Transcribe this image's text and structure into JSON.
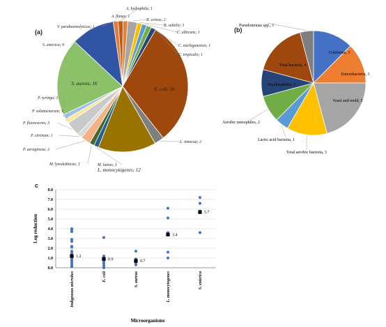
{
  "panels": {
    "a": "(a)",
    "b": "(b)",
    "c": "c"
  },
  "chart_data": [
    {
      "type": "pie",
      "panel": "(a)",
      "slices": [
        {
          "label": "A. hydrophila",
          "value": 1,
          "text": "A. hydrophila; 1",
          "color": "#c55a11"
        },
        {
          "label": "A. flavus",
          "value": 1,
          "text": "A. flavus; 1",
          "color": "#ed7d31"
        },
        {
          "label": "B. cereus",
          "value": 2,
          "text": "B. cereus; 2",
          "color": "#a5a5a5"
        },
        {
          "label": "B. subtilis",
          "value": 1,
          "text": "B. subtilis; 1",
          "color": "#ffc000"
        },
        {
          "label": "C. albicans",
          "value": 1,
          "text": "C. albicans; 1",
          "color": "#5b9bd5"
        },
        {
          "label": "C. michiganensis",
          "value": 1,
          "text": "C. michiganensis; 1",
          "color": "#70ad47"
        },
        {
          "label": "C. tropicalis",
          "value": 1,
          "text": "C. tropicalis; 1",
          "color": "#264478"
        },
        {
          "label": "E. coli",
          "value": 26,
          "text": "E. coli; 26",
          "color": "#9e480e"
        },
        {
          "label": "L. innocua",
          "value": 2,
          "text": "L. innocua; 2",
          "color": "#7f7f7f"
        },
        {
          "label": "L. monocytogenes",
          "value": 12,
          "text": "L. monocytogenes; 12",
          "color": "#997300"
        },
        {
          "label": "M. luteus",
          "value": 1,
          "text": "M. luteus; 1",
          "color": "#255e91"
        },
        {
          "label": "M. lysodeikticus",
          "value": 1,
          "text": "M. lysodeikticus; 1",
          "color": "#43682b"
        },
        {
          "label": "P. aeruginosa",
          "value": 2,
          "text": "P. aeruginosa; 2",
          "color": "#f4b183"
        },
        {
          "label": "P. citrinum",
          "value": 1,
          "text": "P. citrinum; 1",
          "color": "#d9d9d9"
        },
        {
          "label": "P. fluorescens",
          "value": 3,
          "text": "P. fluorescens; 3",
          "color": "#c9c9c9"
        },
        {
          "label": "P. solanacearum",
          "value": 1,
          "text": "P. solanacearum; 1",
          "color": "#ffe699"
        },
        {
          "label": "P. syringa",
          "value": 1,
          "text": "P. syringa; 1",
          "color": "#9dc3e6"
        },
        {
          "label": "S. aureus",
          "value": 16,
          "text": "S. aureus; 16",
          "color": "#8cc16a"
        },
        {
          "label": "S. enterica",
          "value": 9,
          "text": "S. enterica; 9",
          "color": "#2f55a4"
        },
        {
          "label": "V. parahaemolyticus",
          "value": 1,
          "text": "V. parahaemolyticus; 1",
          "color": "#e07b39"
        }
      ]
    },
    {
      "type": "pie",
      "panel": "(b)",
      "slices": [
        {
          "label": "Coliforms",
          "value": 3,
          "text": "Coliforms, 3",
          "color": "#4472c4"
        },
        {
          "label": "Enterobacteria",
          "value": 3,
          "text": "Enterobacteria, 3",
          "color": "#ed7d31"
        },
        {
          "label": "Yeast and mold",
          "value": 5,
          "text": "Yeast and mold, 5",
          "color": "#a5a5a5"
        },
        {
          "label": "Total aerobic bacteria",
          "value": 3,
          "text": "Total aerobic bacteria, 3",
          "color": "#ffc000"
        },
        {
          "label": "Lactic acid bacteria",
          "value": 1,
          "text": "Lactic acid bacteria, 1",
          "color": "#5b9bd5"
        },
        {
          "label": "Aerobic mesophiles",
          "value": 2,
          "text": "Aerobic mesophiles, 2",
          "color": "#70ad47"
        },
        {
          "label": "Psychrophiles",
          "value": 2,
          "text": "Psychrophiles, 2",
          "color": "#264478"
        },
        {
          "label": "Total bacteria",
          "value": 4,
          "text": "Total bacteria, 4",
          "color": "#9e480e"
        },
        {
          "label": "Pseudomonas spp.",
          "value": 1,
          "text": "Pseudomonas spp., 1",
          "color": "#7f7f7f"
        }
      ]
    },
    {
      "type": "scatter",
      "panel": "c",
      "xlabel": "Microorganisms",
      "ylabel": "Log reduction",
      "ylim": [
        0,
        8
      ],
      "yticks": [
        "0.0",
        "1.0",
        "2.0",
        "3.0",
        "4.0",
        "5.0",
        "6.0",
        "7.0",
        "8.0"
      ],
      "grid": "horizontal",
      "categories": [
        "Indigenous microbes",
        "E. coli",
        "S. aureus",
        "L. monocytogenes",
        "S. enterica"
      ],
      "points": [
        [
          4.0,
          3.9,
          3.7,
          2.9,
          2.7,
          2.2,
          2.1,
          1.7,
          1.5,
          1.3,
          1.1,
          1.0,
          0.8,
          0.6,
          0.4,
          0.2,
          0.1
        ],
        [
          3.1,
          1.2,
          1.1,
          1.0,
          0.9,
          0.6,
          0.4,
          0.2,
          0.0
        ],
        [
          1.7,
          0.9,
          0.7,
          0.4,
          0.3
        ],
        [
          6.1,
          5.1,
          3.6,
          3.4,
          1.6,
          1.0
        ],
        [
          7.2,
          6.6,
          5.8,
          3.6
        ]
      ],
      "means": [
        1.2,
        0.9,
        0.7,
        3.4,
        5.7
      ],
      "mean_labels": [
        "1.2",
        "0.9",
        "0.7",
        "3.4",
        "5.7"
      ],
      "point_color": "#4472c4",
      "mean_color": "#000000"
    }
  ]
}
